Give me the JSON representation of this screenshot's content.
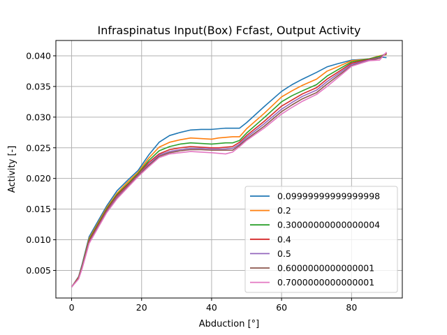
{
  "chart_data": {
    "type": "line",
    "title": "Infraspinatus Input(Box) Fcfast, Output Activity",
    "xlabel": "Abduction [°]",
    "ylabel": "Activity [-]",
    "xlim": [
      -4.5,
      94.5
    ],
    "ylim": [
      0.0005,
      0.0425
    ],
    "xticks": [
      0,
      20,
      40,
      60,
      80
    ],
    "yticks": [
      0.005,
      0.01,
      0.015,
      0.02,
      0.025,
      0.03,
      0.035,
      0.04
    ],
    "xtick_labels": [
      "0",
      "20",
      "40",
      "60",
      "80"
    ],
    "ytick_labels": [
      "0.005",
      "0.010",
      "0.015",
      "0.020",
      "0.025",
      "0.030",
      "0.035",
      "0.040"
    ],
    "grid": true,
    "legend_position": "lower-right",
    "x": [
      0,
      2,
      3,
      5,
      7,
      10,
      13,
      16,
      19,
      22,
      25,
      28,
      31,
      34,
      37,
      40,
      42,
      44,
      46,
      48,
      50,
      55,
      60,
      63,
      66,
      70,
      73,
      76,
      80,
      85,
      88,
      90
    ],
    "series": [
      {
        "name": "0.09999999999999998",
        "color": "#1f77b4",
        "values": [
          0.0023,
          0.004,
          0.006,
          0.0105,
          0.0125,
          0.0155,
          0.018,
          0.0197,
          0.0213,
          0.0238,
          0.0259,
          0.027,
          0.0275,
          0.0279,
          0.028,
          0.028,
          0.0281,
          0.0282,
          0.0282,
          0.0282,
          0.0291,
          0.0317,
          0.0342,
          0.0353,
          0.0362,
          0.0373,
          0.0382,
          0.0387,
          0.0393,
          0.0395,
          0.0398,
          0.0397
        ]
      },
      {
        "name": "0.2",
        "color": "#ff7f0e",
        "values": [
          0.0023,
          0.0039,
          0.0058,
          0.0102,
          0.0122,
          0.0152,
          0.0176,
          0.0194,
          0.021,
          0.0233,
          0.0251,
          0.0259,
          0.0263,
          0.0266,
          0.0265,
          0.0264,
          0.0266,
          0.0267,
          0.0268,
          0.0268,
          0.0281,
          0.0306,
          0.0333,
          0.0343,
          0.0352,
          0.0362,
          0.0375,
          0.0382,
          0.0392,
          0.0395,
          0.04,
          0.0402
        ]
      },
      {
        "name": "0.30000000000000004",
        "color": "#2ca02c",
        "values": [
          0.0023,
          0.0038,
          0.0057,
          0.01,
          0.012,
          0.015,
          0.0174,
          0.0191,
          0.0208,
          0.0229,
          0.0245,
          0.0252,
          0.0256,
          0.0258,
          0.0257,
          0.0256,
          0.0257,
          0.0258,
          0.0258,
          0.0262,
          0.0274,
          0.0299,
          0.0325,
          0.0335,
          0.0343,
          0.0353,
          0.0367,
          0.0377,
          0.039,
          0.0395,
          0.0399,
          0.0403
        ]
      },
      {
        "name": "0.4",
        "color": "#d62728",
        "values": [
          0.0023,
          0.0038,
          0.0056,
          0.0098,
          0.0118,
          0.0148,
          0.0172,
          0.0189,
          0.0206,
          0.0226,
          0.024,
          0.0247,
          0.025,
          0.0252,
          0.0251,
          0.025,
          0.025,
          0.0251,
          0.0252,
          0.0259,
          0.027,
          0.0293,
          0.0318,
          0.0328,
          0.0338,
          0.0348,
          0.0362,
          0.0373,
          0.0388,
          0.0394,
          0.0397,
          0.0404
        ]
      },
      {
        "name": "0.5",
        "color": "#9467bd",
        "values": [
          0.0023,
          0.0037,
          0.0055,
          0.0096,
          0.0116,
          0.0146,
          0.017,
          0.0187,
          0.0205,
          0.0223,
          0.0238,
          0.0244,
          0.0247,
          0.0249,
          0.0249,
          0.0248,
          0.0248,
          0.0248,
          0.0249,
          0.0256,
          0.0267,
          0.0289,
          0.0313,
          0.0324,
          0.0334,
          0.0344,
          0.0358,
          0.037,
          0.0386,
          0.0393,
          0.0397,
          0.0405
        ]
      },
      {
        "name": "0.6000000000000001",
        "color": "#8c564b",
        "values": [
          0.0023,
          0.0037,
          0.0054,
          0.0095,
          0.0115,
          0.0145,
          0.0168,
          0.0186,
          0.0204,
          0.0221,
          0.0236,
          0.0242,
          0.0245,
          0.0247,
          0.0247,
          0.0246,
          0.0246,
          0.0246,
          0.0246,
          0.0254,
          0.0264,
          0.0285,
          0.0309,
          0.032,
          0.033,
          0.034,
          0.0354,
          0.0367,
          0.0384,
          0.0392,
          0.0396,
          0.0405
        ]
      },
      {
        "name": "0.7000000000000001",
        "color": "#e377c2",
        "values": [
          0.0023,
          0.0036,
          0.0053,
          0.0094,
          0.0114,
          0.0144,
          0.0167,
          0.0185,
          0.0203,
          0.0219,
          0.0234,
          0.024,
          0.0242,
          0.0244,
          0.0243,
          0.0242,
          0.0241,
          0.024,
          0.0243,
          0.0252,
          0.0262,
          0.0282,
          0.0305,
          0.0316,
          0.0326,
          0.0337,
          0.035,
          0.0364,
          0.0383,
          0.0392,
          0.0393,
          0.0406
        ]
      }
    ]
  }
}
